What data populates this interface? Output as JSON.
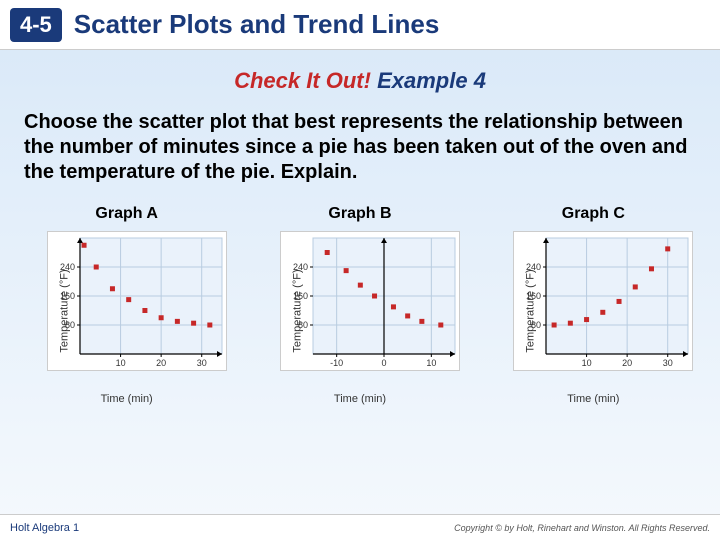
{
  "header": {
    "lesson": "4-5",
    "title": "Scatter Plots and Trend Lines"
  },
  "subtitle": {
    "red": "Check It Out!",
    "blue": "Example 4"
  },
  "prompt": "Choose the scatter plot that best represents the relationship between the number of minutes since a pie has been taken out of the oven and the temperature of the pie. Explain.",
  "graphs": [
    {
      "label": "Graph A",
      "ylabel": "Temperature (°F)",
      "xlabel": "Time (min)",
      "type": "scatter",
      "xlim": [
        0,
        35
      ],
      "xticks": [
        10,
        20,
        30
      ],
      "ylim": [
        0,
        320
      ],
      "yticks": [
        80,
        160,
        240
      ],
      "points": [
        [
          1,
          300
        ],
        [
          4,
          240
        ],
        [
          8,
          180
        ],
        [
          12,
          150
        ],
        [
          16,
          120
        ],
        [
          20,
          100
        ],
        [
          24,
          90
        ],
        [
          28,
          85
        ],
        [
          32,
          80
        ]
      ],
      "point_color": "#c62828",
      "bg": "#eaf2fb",
      "grid": "#b8cce0",
      "axis": "#000"
    },
    {
      "label": "Graph B",
      "ylabel": "Temperature (°F)",
      "xlabel": "Time (min)",
      "type": "scatter",
      "xlim": [
        -15,
        15
      ],
      "xticks": [
        -10,
        0,
        10
      ],
      "ylim": [
        0,
        320
      ],
      "yticks": [
        80,
        160,
        240
      ],
      "points": [
        [
          -12,
          280
        ],
        [
          -8,
          230
        ],
        [
          -5,
          190
        ],
        [
          -2,
          160
        ],
        [
          2,
          130
        ],
        [
          5,
          105
        ],
        [
          8,
          90
        ],
        [
          12,
          80
        ]
      ],
      "point_color": "#c62828",
      "bg": "#eaf2fb",
      "grid": "#b8cce0",
      "axis": "#000"
    },
    {
      "label": "Graph C",
      "ylabel": "Temperature (°F)",
      "xlabel": "Time (min)",
      "type": "scatter",
      "xlim": [
        0,
        35
      ],
      "xticks": [
        10,
        20,
        30
      ],
      "ylim": [
        0,
        320
      ],
      "yticks": [
        80,
        160,
        240
      ],
      "points": [
        [
          2,
          80
        ],
        [
          6,
          85
        ],
        [
          10,
          95
        ],
        [
          14,
          115
        ],
        [
          18,
          145
        ],
        [
          22,
          185
        ],
        [
          26,
          235
        ],
        [
          30,
          290
        ]
      ],
      "point_color": "#c62828",
      "bg": "#eaf2fb",
      "grid": "#b8cce0",
      "axis": "#000"
    }
  ],
  "footer": {
    "left": "Holt Algebra 1",
    "right": "Copyright © by Holt, Rinehart and Winston. All Rights Reserved."
  }
}
